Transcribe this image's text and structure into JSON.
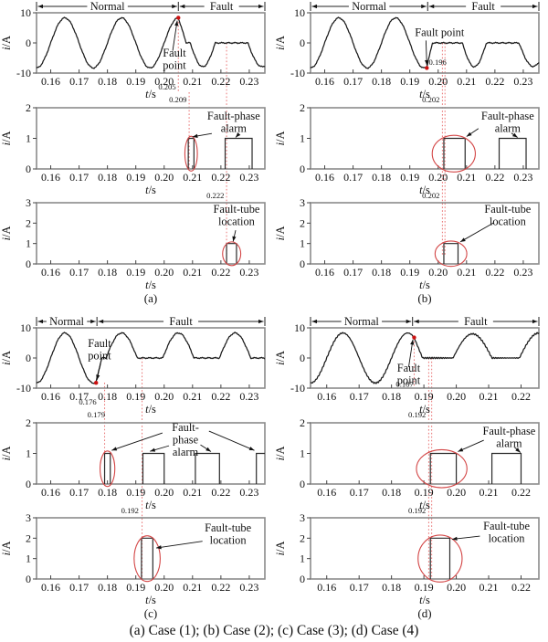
{
  "figure": {
    "caption": "(a) Case (1); (b) Case (2); (c) Case (3); (d) Case (4)"
  },
  "labels": {
    "y_axis_current": "i/A",
    "x_axis_time": "t/s",
    "normal": "Normal",
    "fault": "Fault",
    "fault_point": "Fault point",
    "fault_phase_alarm": "Fault-phase alarm",
    "fault_tube_location": "Fault-tube location"
  },
  "colors": {
    "wave": "#1b1b1b",
    "pulse": "#2a2a2a",
    "frame": "#8b8b8b",
    "red": "#d34545",
    "dotted": "#ea7a7a",
    "dot": "#cc1111",
    "arrow": "#111111",
    "tick": "#444444",
    "text": "#101010"
  },
  "chart_data": {
    "type": "line",
    "description": "Phase current, fault-phase alarm and fault-tube location signals for four fault cases",
    "panels_per_case": [
      {
        "id": "p1",
        "ylabel": "i/A",
        "ylim": [
          -10,
          10
        ],
        "yticks": [
          -10,
          0,
          10
        ]
      },
      {
        "id": "p2",
        "ylabel": "i/A",
        "ylim": [
          0,
          2
        ],
        "yticks": [
          0,
          1,
          2
        ]
      },
      {
        "id": "p3",
        "ylabel": "i/A",
        "ylim": [
          0,
          3
        ],
        "yticks": [
          0,
          1,
          2,
          3
        ]
      }
    ],
    "cases": [
      {
        "id": "a",
        "sub_label": "(a)",
        "x_range": [
          0.155,
          0.2355
        ],
        "x_tick_labels": [
          "0.16",
          "0.17",
          "0.18",
          "0.19",
          "0.20",
          "0.21",
          "0.22",
          "0.23"
        ],
        "divider_t": 0.205,
        "fault_point": {
          "t": 0.205,
          "i": 8.35
        },
        "wave": [
          {
            "k": "sine",
            "a": 0.155,
            "b": 0.205,
            "amp": 8.3
          },
          {
            "k": "line",
            "a": 0.205,
            "b": 0.2078,
            "v0": 8.3,
            "v1": 0
          },
          {
            "k": "flat",
            "a": 0.2078,
            "b": 0.2092
          },
          {
            "k": "halfneg",
            "a": 0.2092,
            "b": 0.218,
            "amp": 7.9
          },
          {
            "k": "flat",
            "a": 0.218,
            "b": 0.2295
          },
          {
            "k": "halfneg",
            "a": 0.2295,
            "b": 0.2395,
            "amp": 7.9
          }
        ],
        "alarm_pulses": [
          [
            0.2085,
            0.2105,
            1
          ],
          [
            0.2215,
            0.231,
            1
          ]
        ],
        "location_pulses": [
          [
            0.222,
            0.2255,
            1
          ]
        ],
        "ellipses": [
          {
            "plot": "p2",
            "cx": 0.2095,
            "cy": 0.5,
            "rx": 0.0022,
            "ry": 0.57
          },
          {
            "plot": "p3",
            "cx": 0.2238,
            "cy": 0.5,
            "rx": 0.0032,
            "ry": 0.58
          }
        ],
        "dotted_lines": [
          {
            "x": 0.205,
            "y1": 20,
            "y2": 100
          },
          {
            "x": 0.2088,
            "y1": 101,
            "y2": 185
          },
          {
            "x": 0.222,
            "y1": 47,
            "y2": 278
          }
        ],
        "time_labels": [
          {
            "text": "0.205",
            "x": 0.2048,
            "y": 98,
            "anchor": "end"
          },
          {
            "text": "0.209",
            "x": 0.2086,
            "y": 112,
            "anchor": "end"
          },
          {
            "text": "0.222",
            "x": 0.2218,
            "y": 217,
            "anchor": "end"
          }
        ],
        "annotations": [
          {
            "plot": "p1",
            "lines": [
              "Fault",
              "point"
            ],
            "x": 0.2036,
            "i": -4.5
          },
          {
            "plot": "p2",
            "lines": [
              "Fault-phase",
              "alarm"
            ],
            "x": 0.2245,
            "i": 1.61
          },
          {
            "plot": "p3",
            "lines": [
              "Fault-tube",
              "location"
            ],
            "x": 0.2255,
            "i": 2.51
          }
        ],
        "arrows": [
          {
            "plot": "p1",
            "x1": 0.203,
            "i1": -2.6,
            "x2": 0.2046,
            "i2": 7.4
          },
          {
            "plot": "p2",
            "x1": 0.2168,
            "i1": 1.16,
            "x2": 0.21,
            "i2": 1.05
          },
          {
            "plot": "p2",
            "x1": 0.2262,
            "i1": 1.13,
            "x2": 0.2252,
            "i2": 1.03
          },
          {
            "plot": "p3",
            "x1": 0.2252,
            "i1": 1.65,
            "x2": 0.2243,
            "i2": 1.1
          }
        ]
      },
      {
        "id": "b",
        "sub_label": "(b)",
        "x_range": [
          0.155,
          0.2355
        ],
        "x_tick_labels": [
          "0.16",
          "0.17",
          "0.18",
          "0.19",
          "0.20",
          "0.21",
          "0.22",
          "0.23"
        ],
        "divider_t": 0.1963,
        "fault_point": {
          "t": 0.196,
          "i": -8.3,
          "label": "0.196",
          "label_x": 0.1967,
          "label_y": 71,
          "label_anchor": "start"
        },
        "wave": [
          {
            "k": "sine",
            "a": 0.155,
            "b": 0.196,
            "amp": 8.3
          },
          {
            "k": "line",
            "a": 0.196,
            "b": 0.198,
            "v0": -7.9,
            "v1": 0
          },
          {
            "k": "flat",
            "a": 0.198,
            "b": 0.2085
          },
          {
            "k": "halfneg",
            "a": 0.2085,
            "b": 0.217,
            "amp": 7.9
          },
          {
            "k": "flat",
            "a": 0.217,
            "b": 0.2285
          },
          {
            "k": "halfneg",
            "a": 0.2285,
            "b": 0.2385,
            "amp": 7.8
          }
        ],
        "alarm_pulses": [
          [
            0.202,
            0.2095,
            1
          ],
          [
            0.2215,
            0.231,
            1
          ]
        ],
        "location_pulses": [
          [
            0.202,
            0.207,
            1
          ]
        ],
        "ellipses": [
          {
            "plot": "p2",
            "cx": 0.2055,
            "cy": 0.5,
            "rx": 0.0076,
            "ry": 0.6
          },
          {
            "plot": "p3",
            "cx": 0.2045,
            "cy": 0.5,
            "rx": 0.0056,
            "ry": 0.62
          }
        ],
        "dotted_lines": [
          {
            "x": 0.2015,
            "y1": 47,
            "y2": 281
          },
          {
            "x": 0.2024,
            "y1": 47,
            "y2": 281
          }
        ],
        "time_labels": [
          {
            "text": "0.202",
            "x": 0.2012,
            "y": 112,
            "anchor": "end"
          },
          {
            "text": "0.202",
            "x": 0.2012,
            "y": 217,
            "anchor": "end"
          }
        ],
        "annotations": [
          {
            "plot": "p1",
            "lines": [
              "Fault point"
            ],
            "x": 0.2005,
            "i": 2.2
          },
          {
            "plot": "p2",
            "lines": [
              "Fault-phase",
              "alarm"
            ],
            "x": 0.2245,
            "i": 1.61
          },
          {
            "plot": "p3",
            "lines": [
              "Fault-tube",
              "location"
            ],
            "x": 0.2245,
            "i": 2.51
          }
        ],
        "arrows": [
          {
            "plot": "p1",
            "x1": 0.1957,
            "i1": 0.8,
            "x2": 0.196,
            "i2": -7.4
          },
          {
            "plot": "p2",
            "x1": 0.2142,
            "i1": 1.32,
            "x2": 0.21,
            "i2": 1.06
          },
          {
            "plot": "p2",
            "x1": 0.2258,
            "i1": 1.17,
            "x2": 0.228,
            "i2": 1.03
          },
          {
            "plot": "p3",
            "x1": 0.2196,
            "i1": 2.02,
            "x2": 0.2078,
            "i2": 1.08
          }
        ]
      },
      {
        "id": "c",
        "sub_label": "(c)",
        "x_range": [
          0.155,
          0.2355
        ],
        "x_tick_labels": [
          "0.16",
          "0.17",
          "0.18",
          "0.19",
          "0.20",
          "0.21",
          "0.22",
          "0.23"
        ],
        "divider_t": 0.1763,
        "fault_point": {
          "t": 0.176,
          "i": -8.25
        },
        "wave": [
          {
            "k": "sine",
            "a": 0.155,
            "b": 0.176,
            "amp": 8.3
          },
          {
            "k": "line",
            "a": 0.176,
            "b": 0.178,
            "v0": -7.9,
            "v1": 0
          },
          {
            "k": "flat",
            "a": 0.178,
            "b": 0.1795
          },
          {
            "k": "halfpos",
            "a": 0.1795,
            "b": 0.1905,
            "amp": 8.3
          },
          {
            "k": "flat",
            "a": 0.1905,
            "b": 0.1995
          },
          {
            "k": "halfpos",
            "a": 0.1995,
            "b": 0.2105,
            "amp": 8.3
          },
          {
            "k": "flat",
            "a": 0.2105,
            "b": 0.2195
          },
          {
            "k": "halfpos",
            "a": 0.2195,
            "b": 0.2305,
            "amp": 8.3
          },
          {
            "k": "flat",
            "a": 0.2305,
            "b": 0.2355
          }
        ],
        "alarm_pulses": [
          [
            0.179,
            0.181,
            1
          ],
          [
            0.1925,
            0.2,
            1
          ],
          [
            0.211,
            0.2195,
            1
          ],
          [
            0.2325,
            0.236,
            1
          ]
        ],
        "location_pulses": [
          [
            0.192,
            0.196,
            2
          ]
        ],
        "ellipses": [
          {
            "plot": "p2",
            "cx": 0.18,
            "cy": 0.5,
            "rx": 0.0026,
            "ry": 0.58
          },
          {
            "plot": "p3",
            "cx": 0.194,
            "cy": 1.0,
            "rx": 0.0046,
            "ry": 1.12
          }
        ],
        "dotted_lines": [
          {
            "x": 0.179,
            "y1": 74,
            "y2": 185
          },
          {
            "x": 0.1922,
            "y1": 47,
            "y2": 287
          }
        ],
        "time_labels": [
          {
            "text": "0.176",
            "x": 0.1768,
            "y": 98,
            "anchor": "end"
          },
          {
            "text": "0.179",
            "x": 0.1798,
            "y": 112,
            "anchor": "end"
          },
          {
            "text": "0.192",
            "x": 0.1917,
            "y": 217,
            "anchor": "end"
          }
        ],
        "annotations": [
          {
            "plot": "p1",
            "lines": [
              "Fault",
              "point"
            ],
            "x": 0.1772,
            "i": 3.6
          },
          {
            "plot": "p2",
            "lines": [
              "Fault-",
              "phase",
              "alarm"
            ],
            "x": 0.2075,
            "i": 1.73
          },
          {
            "plot": "p3",
            "lines": [
              "Fault-tube",
              "location"
            ],
            "x": 0.2225,
            "i": 2.33
          }
        ],
        "arrows": [
          {
            "plot": "p1",
            "x1": 0.1775,
            "i1": -1.8,
            "x2": 0.1763,
            "i2": -7.3
          },
          {
            "plot": "p2",
            "x1": 0.1994,
            "i1": 1.67,
            "x2": 0.1815,
            "i2": 1.1
          },
          {
            "plot": "p2",
            "x1": 0.2017,
            "i1": 1.25,
            "x2": 0.195,
            "i2": 1.07
          },
          {
            "plot": "p2",
            "x1": 0.2128,
            "i1": 1.28,
            "x2": 0.2165,
            "i2": 1.06
          },
          {
            "plot": "p2",
            "x1": 0.2158,
            "i1": 1.73,
            "x2": 0.2318,
            "i2": 1.1
          },
          {
            "plot": "p3",
            "x1": 0.2135,
            "i1": 1.85,
            "x2": 0.1972,
            "i2": 1.52
          }
        ]
      },
      {
        "id": "d",
        "sub_label": "(d)",
        "x_range": [
          0.155,
          0.2255
        ],
        "x_tick_labels": [
          "0.16",
          "0.17",
          "0.18",
          "0.19",
          "0.20",
          "0.21",
          "0.22"
        ],
        "divider_t": 0.1865,
        "fault_point": {
          "t": 0.187,
          "i": 6.8,
          "label": "0.187",
          "label_x": 0.1868,
          "label_y": 78.5,
          "label_anchor": "end"
        },
        "wave": [
          {
            "k": "sine",
            "a": 0.155,
            "b": 0.187,
            "amp": 8.3
          },
          {
            "k": "line",
            "a": 0.187,
            "b": 0.1896,
            "v0": 6.7,
            "v1": 0
          },
          {
            "k": "flat",
            "a": 0.1896,
            "b": 0.199
          },
          {
            "k": "halfpos",
            "a": 0.199,
            "b": 0.211,
            "amp": 8.0
          },
          {
            "k": "flat",
            "a": 0.211,
            "b": 0.2195
          },
          {
            "k": "halfpos",
            "a": 0.2195,
            "b": 0.2315,
            "amp": 8.3
          }
        ],
        "alarm_pulses": [
          [
            0.192,
            0.2,
            1
          ],
          [
            0.211,
            0.22,
            1
          ]
        ],
        "location_pulses": [
          [
            0.192,
            0.198,
            2
          ]
        ],
        "ellipses": [
          {
            "plot": "p2",
            "cx": 0.1955,
            "cy": 0.5,
            "rx": 0.0078,
            "ry": 0.62
          },
          {
            "plot": "p3",
            "cx": 0.195,
            "cy": 1.0,
            "rx": 0.0068,
            "ry": 1.15
          }
        ],
        "dotted_lines": [
          {
            "x": 0.187,
            "y1": 25,
            "y2": 80
          },
          {
            "x": 0.1915,
            "y1": 47,
            "y2": 287
          },
          {
            "x": 0.1924,
            "y1": 47,
            "y2": 287
          }
        ],
        "time_labels": [
          {
            "text": "0.192",
            "x": 0.1912,
            "y": 112,
            "anchor": "end"
          },
          {
            "text": "0.192",
            "x": 0.1912,
            "y": 217,
            "anchor": "end"
          }
        ],
        "annotations": [
          {
            "plot": "p1",
            "lines": [
              "Fault",
              "point"
            ],
            "x": 0.1853,
            "i": -4.5
          },
          {
            "plot": "p2",
            "lines": [
              "Fault-phase",
              "alarm"
            ],
            "x": 0.2163,
            "i": 1.61
          },
          {
            "plot": "p3",
            "lines": [
              "Fault-tube",
              "location"
            ],
            "x": 0.2155,
            "i": 2.42
          }
        ],
        "arrows": [
          {
            "plot": "p1",
            "x1": 0.1853,
            "i1": -3.0,
            "x2": 0.1866,
            "i2": 6.1
          },
          {
            "plot": "p2",
            "x1": 0.2085,
            "i1": 1.43,
            "x2": 0.2005,
            "i2": 1.06
          },
          {
            "plot": "p2",
            "x1": 0.218,
            "i1": 1.2,
            "x2": 0.2198,
            "i2": 1.03
          },
          {
            "plot": "p3",
            "x1": 0.2073,
            "i1": 2.1,
            "x2": 0.1987,
            "i2": 1.95
          }
        ]
      }
    ]
  }
}
